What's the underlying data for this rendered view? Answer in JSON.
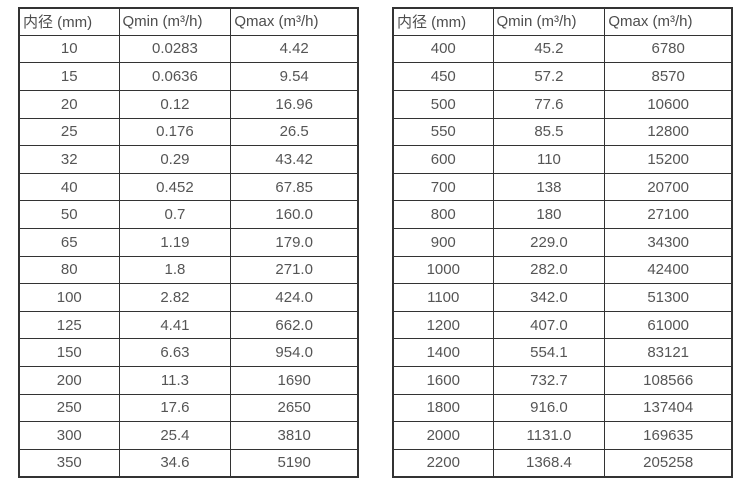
{
  "text_color": "#555555",
  "border_color": "#333333",
  "tables": [
    {
      "name": "flow-rate-table-small-diameters",
      "headers": [
        "内径 (mm)",
        "Qmin (m³/h)",
        "Qmax (m³/h)"
      ],
      "rows": [
        [
          "10",
          "0.0283",
          "4.42"
        ],
        [
          "15",
          "0.0636",
          "9.54"
        ],
        [
          "20",
          "0.12",
          "16.96"
        ],
        [
          "25",
          "0.176",
          "26.5"
        ],
        [
          "32",
          "0.29",
          "43.42"
        ],
        [
          "40",
          "0.452",
          "67.85"
        ],
        [
          "50",
          "0.7",
          "160.0"
        ],
        [
          "65",
          "1.19",
          "179.0"
        ],
        [
          "80",
          "1.8",
          "271.0"
        ],
        [
          "100",
          "2.82",
          "424.0"
        ],
        [
          "125",
          "4.41",
          "662.0"
        ],
        [
          "150",
          "6.63",
          "954.0"
        ],
        [
          "200",
          "11.3",
          "1690"
        ],
        [
          "250",
          "17.6",
          "2650"
        ],
        [
          "300",
          "25.4",
          "3810"
        ],
        [
          "350",
          "34.6",
          "5190"
        ]
      ]
    },
    {
      "name": "flow-rate-table-large-diameters",
      "headers": [
        "内径 (mm)",
        "Qmin (m³/h)",
        "Qmax (m³/h)"
      ],
      "rows": [
        [
          "400",
          "45.2",
          "6780"
        ],
        [
          "450",
          "57.2",
          "8570"
        ],
        [
          "500",
          "77.6",
          "10600"
        ],
        [
          "550",
          "85.5",
          "12800"
        ],
        [
          "600",
          "110",
          "15200"
        ],
        [
          "700",
          "138",
          "20700"
        ],
        [
          "800",
          "180",
          "27100"
        ],
        [
          "900",
          "229.0",
          "34300"
        ],
        [
          "1000",
          "282.0",
          "42400"
        ],
        [
          "1100",
          "342.0",
          "51300"
        ],
        [
          "1200",
          "407.0",
          "61000"
        ],
        [
          "1400",
          "554.1",
          "83121"
        ],
        [
          "1600",
          "732.7",
          "108566"
        ],
        [
          "1800",
          "916.0",
          "137404"
        ],
        [
          "2000",
          "1131.0",
          "169635"
        ],
        [
          "2200",
          "1368.4",
          "205258"
        ]
      ]
    }
  ],
  "chart_data": {
    "type": "table",
    "title": "",
    "tables": [
      {
        "columns": [
          "内径 (mm)",
          "Qmin (m³/h)",
          "Qmax (m³/h)"
        ],
        "rows": [
          [
            10,
            0.0283,
            4.42
          ],
          [
            15,
            0.0636,
            9.54
          ],
          [
            20,
            0.12,
            16.96
          ],
          [
            25,
            0.176,
            26.5
          ],
          [
            32,
            0.29,
            43.42
          ],
          [
            40,
            0.452,
            67.85
          ],
          [
            50,
            0.7,
            160.0
          ],
          [
            65,
            1.19,
            179.0
          ],
          [
            80,
            1.8,
            271.0
          ],
          [
            100,
            2.82,
            424.0
          ],
          [
            125,
            4.41,
            662.0
          ],
          [
            150,
            6.63,
            954.0
          ],
          [
            200,
            11.3,
            1690
          ],
          [
            250,
            17.6,
            2650
          ],
          [
            300,
            25.4,
            3810
          ],
          [
            350,
            34.6,
            5190
          ]
        ]
      },
      {
        "columns": [
          "内径 (mm)",
          "Qmin (m³/h)",
          "Qmax (m³/h)"
        ],
        "rows": [
          [
            400,
            45.2,
            6780
          ],
          [
            450,
            57.2,
            8570
          ],
          [
            500,
            77.6,
            10600
          ],
          [
            550,
            85.5,
            12800
          ],
          [
            600,
            110,
            15200
          ],
          [
            700,
            138,
            20700
          ],
          [
            800,
            180,
            27100
          ],
          [
            900,
            229.0,
            34300
          ],
          [
            1000,
            282.0,
            42400
          ],
          [
            1100,
            342.0,
            51300
          ],
          [
            1200,
            407.0,
            61000
          ],
          [
            1400,
            554.1,
            83121
          ],
          [
            1600,
            732.7,
            108566
          ],
          [
            1800,
            916.0,
            137404
          ],
          [
            2000,
            1131.0,
            169635
          ],
          [
            2200,
            1368.4,
            205258
          ]
        ]
      }
    ]
  }
}
